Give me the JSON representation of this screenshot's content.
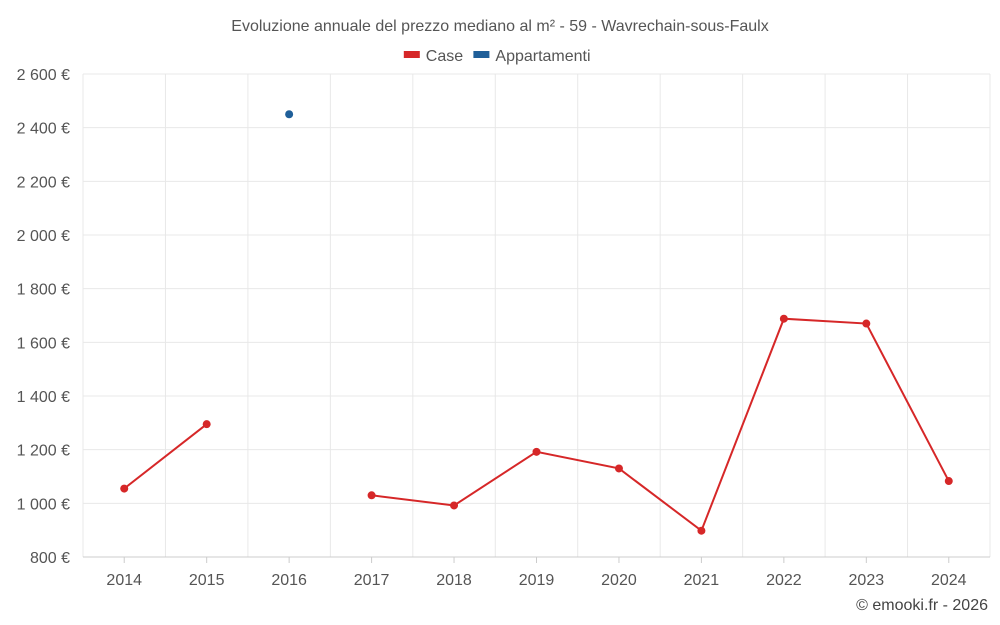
{
  "chart_data": {
    "type": "line",
    "title": "Evoluzione annuale del prezzo mediano al m² - 59 - Wavrechain-sous-Faulx",
    "categories": [
      "2014",
      "2015",
      "2016",
      "2017",
      "2018",
      "2019",
      "2020",
      "2021",
      "2022",
      "2023",
      "2024"
    ],
    "series": [
      {
        "name": "Case",
        "color": "#d62728",
        "values": [
          1055,
          1295,
          null,
          1030,
          992,
          1192,
          1130,
          898,
          1688,
          1670,
          1083
        ]
      },
      {
        "name": "Appartamenti",
        "color": "#1f5f99",
        "values": [
          null,
          null,
          2450,
          null,
          null,
          null,
          null,
          null,
          null,
          null,
          null
        ]
      }
    ],
    "ylim": [
      800,
      2600
    ],
    "yticks": [
      800,
      1000,
      1200,
      1400,
      1600,
      1800,
      2000,
      2200,
      2400,
      2600
    ],
    "ytick_labels": [
      "800 €",
      "1 000 €",
      "1 200 €",
      "1 400 €",
      "1 600 €",
      "1 800 €",
      "2 000 €",
      "2 200 €",
      "2 400 €",
      "2 600 €"
    ],
    "xlabel": "",
    "ylabel": "",
    "grid": true,
    "legend_position": "top-center"
  },
  "footer": {
    "credit": "© emooki.fr - 2026"
  }
}
